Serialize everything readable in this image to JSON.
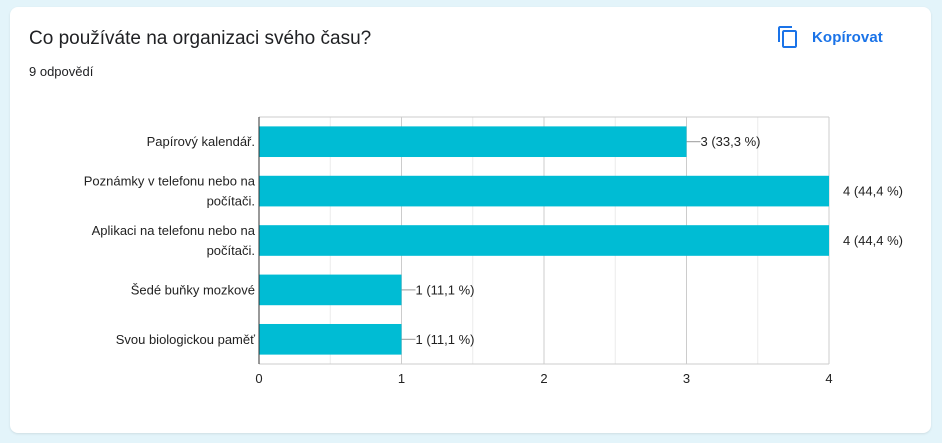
{
  "card": {
    "title": "Co používáte na organizaci svého času?",
    "responses": "9 odpovědí",
    "copy_label": "Kopírovat",
    "copy_icon": "copy-icon"
  },
  "colors": {
    "bar": "#00bcd4",
    "accent": "#1a73e8"
  },
  "chart_data": {
    "type": "bar",
    "orientation": "horizontal",
    "categories": [
      [
        "Papírový kalendář."
      ],
      [
        "Poznámky v telefonu nebo na",
        "počítači."
      ],
      [
        "Aplikaci na telefonu nebo na",
        "počítači."
      ],
      [
        "Šedé buňky mozkové"
      ],
      [
        "Svou biologickou paměť"
      ]
    ],
    "values": [
      3,
      4,
      4,
      1,
      1
    ],
    "data_labels": [
      "3 (33,3 %)",
      "4 (44,4 %)",
      "4 (44,4 %)",
      "1 (11,1 %)",
      "1 (11,1 %)"
    ],
    "xlim": [
      0,
      4
    ],
    "xticks": [
      "0",
      "1",
      "2",
      "3",
      "4"
    ],
    "grid": true
  }
}
